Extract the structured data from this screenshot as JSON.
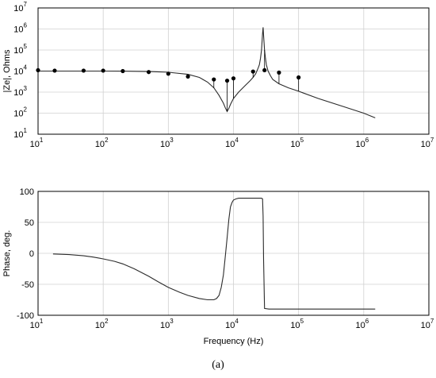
{
  "caption": "(a)",
  "chart_data": [
    {
      "type": "line",
      "ylabel": "|Ze|, Ohms",
      "xlabel": "",
      "xscale": "log",
      "yscale": "log",
      "xlim": [
        10,
        10000000
      ],
      "ylim": [
        10,
        10000000
      ],
      "grid": true,
      "x_ticks": [
        {
          "base": "10",
          "exp": "1"
        },
        {
          "base": "10",
          "exp": "2"
        },
        {
          "base": "10",
          "exp": "3"
        },
        {
          "base": "10",
          "exp": "4"
        },
        {
          "base": "10",
          "exp": "5"
        },
        {
          "base": "10",
          "exp": "6"
        },
        {
          "base": "10",
          "exp": "7"
        }
      ],
      "y_ticks": [
        {
          "base": "10",
          "exp": "1"
        },
        {
          "base": "10",
          "exp": "2"
        },
        {
          "base": "10",
          "exp": "3"
        },
        {
          "base": "10",
          "exp": "4"
        },
        {
          "base": "10",
          "exp": "5"
        },
        {
          "base": "10",
          "exp": "6"
        },
        {
          "base": "10",
          "exp": "7"
        }
      ],
      "series": [
        {
          "style": "line",
          "x": [
            10,
            20,
            50,
            100,
            200,
            500,
            1000,
            2000,
            3000,
            4000,
            5000,
            6000,
            7000,
            7500,
            8000,
            8500,
            9000,
            10000,
            12000,
            15000,
            18000,
            20000,
            22000,
            24000,
            25000,
            26000,
            27000,
            28000,
            28500,
            29000,
            30000,
            31000,
            32000,
            34000,
            37000,
            40000,
            50000,
            70000,
            100000,
            200000,
            500000,
            1000000,
            1500000
          ],
          "y": [
            10000,
            10000,
            10000,
            10000,
            9900,
            9500,
            8800,
            7000,
            5000,
            3000,
            1600,
            700,
            300,
            180,
            120,
            170,
            260,
            500,
            1000,
            2000,
            3500,
            5000,
            7500,
            14000,
            20000,
            40000,
            100000,
            600000,
            1200000,
            500000,
            100000,
            40000,
            20000,
            10000,
            6000,
            4000,
            2500,
            1600,
            1100,
            500,
            200,
            100,
            60
          ]
        },
        {
          "style": "stem",
          "x": [
            10,
            18,
            50,
            100,
            200,
            500,
            1000,
            2000,
            5000,
            8000,
            10000,
            20000,
            30000,
            50000,
            100000
          ],
          "y": [
            11000,
            10500,
            10500,
            10500,
            10000,
            9000,
            7500,
            5500,
            4000,
            3500,
            4500,
            9500,
            11000,
            8500,
            5000
          ]
        }
      ]
    },
    {
      "type": "line",
      "ylabel": "Phase, deg.",
      "xlabel": "Frequency (Hz)",
      "xscale": "log",
      "yscale": "linear",
      "xlim": [
        10,
        10000000
      ],
      "ylim": [
        -100,
        100
      ],
      "grid": true,
      "x_ticks": [
        {
          "base": "10",
          "exp": "1"
        },
        {
          "base": "10",
          "exp": "2"
        },
        {
          "base": "10",
          "exp": "3"
        },
        {
          "base": "10",
          "exp": "4"
        },
        {
          "base": "10",
          "exp": "5"
        },
        {
          "base": "10",
          "exp": "6"
        },
        {
          "base": "10",
          "exp": "7"
        }
      ],
      "y_ticks": [
        "100",
        "50",
        "0",
        "-50",
        "-100"
      ],
      "y_tick_values": [
        100,
        50,
        0,
        -50,
        -100
      ],
      "series": [
        {
          "style": "line",
          "x": [
            17,
            30,
            50,
            70,
            100,
            150,
            200,
            300,
            500,
            700,
            1000,
            1500,
            2000,
            3000,
            4000,
            5000,
            5500,
            6000,
            6500,
            7000,
            7500,
            8000,
            8500,
            9000,
            9500,
            10000,
            11000,
            12000,
            15000,
            20000,
            25000,
            27000,
            28000,
            28500,
            29000,
            30000,
            35000,
            50000,
            100000,
            300000,
            1000000,
            1500000
          ],
          "y": [
            -1,
            -2,
            -4,
            -6,
            -9,
            -13,
            -17,
            -25,
            -37,
            -46,
            -55,
            -63,
            -68,
            -73,
            -75,
            -75,
            -73,
            -68,
            -55,
            -35,
            -5,
            25,
            55,
            75,
            82,
            86,
            88,
            89,
            89,
            89,
            89,
            89,
            88,
            60,
            -10,
            -89,
            -90,
            -90,
            -90,
            -90,
            -90,
            -90
          ]
        }
      ]
    }
  ]
}
